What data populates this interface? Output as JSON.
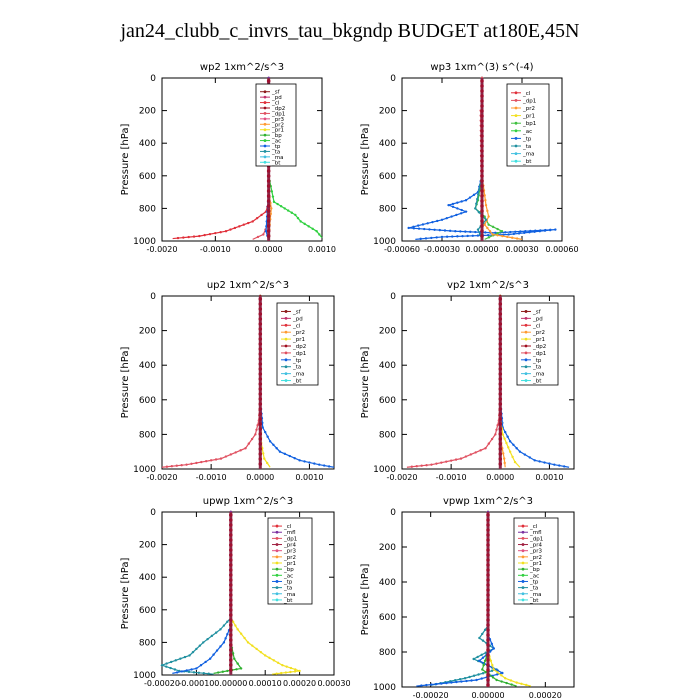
{
  "figure": {
    "title": "jan24_clubb_c_invrs_tau_bkgndp  BUDGET at180E,45N"
  },
  "colors": {
    "_sf": "#8b1a1a",
    "_pd": "#c0306a",
    "_cl": "#e0303a",
    "_dp2": "#a01020",
    "_dp1": "#e05060",
    "_pr2": "#ff9a30",
    "_pr1": "#f2e020",
    "_bp": "#30b030",
    "_ac": "#30d040",
    "_tp": "#1060e0",
    "_ta": "#2090a0",
    "_ma": "#40c0e0",
    "_bt": "#40e0e0",
    "_mfl": "#7b2fa0",
    "_pr4": "#a02040",
    "_pr3": "#e05080",
    "_bp1": "#40c040",
    "_dp": "#a01020"
  },
  "chart_data": [
    {
      "type": "line",
      "title": "wp2   1xm^2/s^3",
      "ylabel": "Pressure [hPa]",
      "xlim": [
        -0.002,
        0.001
      ],
      "ylim": [
        1000,
        0
      ],
      "xticks": [
        -0.002,
        -0.001,
        0.0,
        0.001
      ],
      "xtick_labels": [
        "-0.0020",
        "-0.0010",
        "0.0000",
        "0.0010"
      ],
      "yticks": [
        0,
        200,
        400,
        600,
        800,
        1000
      ],
      "legend": [
        "_sf",
        "_pd",
        "_cl",
        "_dp2",
        "_dp1",
        "_pr3",
        "_pr2",
        "_pr1",
        "_bp",
        "_ac",
        "_tp",
        "_ta",
        "_ma",
        "_bt"
      ],
      "series": [
        {
          "key": "_cl",
          "x": [
            0,
            0,
            0,
            0.0,
            -5e-05,
            -0.0003,
            -0.0008,
            -0.0013,
            -0.0018
          ],
          "y": [
            0,
            200,
            600,
            760,
            820,
            880,
            940,
            970,
            985
          ]
        },
        {
          "key": "_dp1",
          "x": [
            0,
            0,
            0,
            0,
            -2e-05,
            -0.0001,
            -0.0003
          ],
          "y": [
            0,
            200,
            700,
            800,
            900,
            960,
            990
          ]
        },
        {
          "key": "_ac",
          "x": [
            0,
            0,
            0,
            0.0001,
            0.0003,
            0.0005,
            0.0006,
            0.0009,
            0.0011
          ],
          "y": [
            0,
            200,
            600,
            760,
            800,
            840,
            880,
            940,
            980
          ]
        },
        {
          "key": "_pr2",
          "x": [
            0,
            0,
            0,
            5e-05,
            2e-05,
            0
          ],
          "y": [
            0,
            300,
            700,
            800,
            900,
            990
          ]
        },
        {
          "key": "_tp",
          "x": [
            0,
            0,
            0,
            -3e-05,
            -5e-05,
            0
          ],
          "y": [
            0,
            300,
            700,
            850,
            940,
            995
          ]
        },
        {
          "key": "_mfl",
          "x": [
            0,
            0,
            0,
            0,
            0,
            0
          ],
          "y": [
            0,
            200,
            400,
            600,
            800,
            1000
          ]
        }
      ]
    },
    {
      "type": "line",
      "title": "wp3   1xm^(3) s^(-4)",
      "ylabel": "Pressure [hPa]",
      "xlim": [
        -0.0006,
        0.0006
      ],
      "ylim": [
        1000,
        0
      ],
      "xticks": [
        -0.0006,
        -0.0003,
        0.0,
        0.0003,
        0.0006
      ],
      "xtick_labels": [
        "-0.00060",
        "-0.00030",
        "0.00000",
        "0.00030",
        "0.00060"
      ],
      "yticks": [
        0,
        200,
        400,
        600,
        800,
        1000
      ],
      "legend": [
        "_cl",
        "_dp1",
        "_pr2",
        "_pr1",
        "_bp1",
        "_ac",
        "_tp",
        "_ta",
        "_ma",
        "_bt"
      ],
      "series": [
        {
          "key": "_tp",
          "x": [
            0,
            0,
            0,
            -3e-05,
            -0.00012,
            -0.00025,
            -0.00012,
            -0.0003,
            -0.00055,
            -0.0002,
            0.0001,
            0.00055,
            0.0002,
            -0.0003,
            -0.0005
          ],
          "y": [
            0,
            200,
            600,
            700,
            750,
            780,
            820,
            870,
            920,
            940,
            950,
            930,
            960,
            975,
            990
          ]
        },
        {
          "key": "_bp1",
          "x": [
            0,
            0,
            0,
            -3e-05,
            -5e-05,
            2e-05,
            5e-05,
            0.00015,
            2e-05
          ],
          "y": [
            0,
            200,
            600,
            750,
            800,
            850,
            900,
            940,
            990
          ]
        },
        {
          "key": "_pr2",
          "x": [
            0,
            0,
            0,
            3e-05,
            5e-05,
            2e-05,
            8e-05,
            0.0003
          ],
          "y": [
            0,
            300,
            600,
            780,
            850,
            900,
            960,
            990
          ]
        },
        {
          "key": "_ta",
          "x": [
            0,
            0,
            0,
            -5e-05,
            3e-05,
            -3e-05,
            0
          ],
          "y": [
            0,
            300,
            600,
            800,
            870,
            930,
            990
          ]
        },
        {
          "key": "_cl",
          "x": [
            0,
            0,
            0,
            0,
            0,
            0,
            0
          ],
          "y": [
            0,
            200,
            400,
            600,
            800,
            900,
            1000
          ]
        },
        {
          "key": "_dp1",
          "x": [
            0,
            0,
            -1e-05,
            0
          ],
          "y": [
            0,
            190,
            200,
            1000
          ]
        }
      ]
    },
    {
      "type": "line",
      "title": "up2   1xm^2/s^3",
      "ylabel": "Pressure [hPa]",
      "xlim": [
        -0.002,
        0.0015
      ],
      "ylim": [
        1000,
        0
      ],
      "xticks": [
        -0.002,
        -0.001,
        0.0,
        0.001
      ],
      "xtick_labels": [
        "-0.0020",
        "-0.0010",
        "0.0000",
        "0.0010"
      ],
      "yticks": [
        0,
        200,
        400,
        600,
        800,
        1000
      ],
      "legend": [
        "_sf",
        "_pd",
        "_cl",
        "_pr2",
        "_pr1",
        "_dp2",
        "_dp1",
        "_tp",
        "_ta",
        "_ma",
        "_bt"
      ],
      "series": [
        {
          "key": "_dp1",
          "x": [
            0,
            0,
            0,
            -3e-05,
            -0.0001,
            -0.0003,
            -0.0008,
            -0.0015,
            -0.002
          ],
          "y": [
            0,
            200,
            600,
            720,
            800,
            880,
            940,
            975,
            990
          ]
        },
        {
          "key": "_tp",
          "x": [
            0,
            0,
            0,
            5e-05,
            0.0002,
            0.0004,
            0.0008,
            0.0012,
            0.0015
          ],
          "y": [
            0,
            200,
            600,
            760,
            840,
            900,
            950,
            975,
            990
          ]
        },
        {
          "key": "_pr1",
          "x": [
            0,
            0,
            0,
            2e-05,
            8e-05,
            0.0002
          ],
          "y": [
            0,
            300,
            700,
            850,
            940,
            990
          ]
        },
        {
          "key": "_sf",
          "x": [
            0,
            0,
            0,
            0,
            0,
            0
          ],
          "y": [
            0,
            200,
            400,
            600,
            800,
            1000
          ]
        }
      ]
    },
    {
      "type": "line",
      "title": "vp2   1xm^2/s^3",
      "ylabel": "Pressure [hPa]",
      "xlim": [
        -0.002,
        0.0015
      ],
      "ylim": [
        1000,
        0
      ],
      "xticks": [
        -0.002,
        -0.001,
        0.0,
        0.001
      ],
      "xtick_labels": [
        "-0.0020",
        "-0.0010",
        "0.0000",
        "0.0010"
      ],
      "yticks": [
        0,
        200,
        400,
        600,
        800,
        1000
      ],
      "legend": [
        "_sf",
        "_pd",
        "_cl",
        "_pr2",
        "_pr1",
        "_dp2",
        "_dp1",
        "_tp",
        "_ta",
        "_ma",
        "_bt"
      ],
      "series": [
        {
          "key": "_dp1",
          "x": [
            0,
            0,
            0,
            -3e-05,
            -0.0001,
            -0.0003,
            -0.0008,
            -0.0014,
            -0.0019
          ],
          "y": [
            0,
            200,
            600,
            720,
            800,
            880,
            940,
            975,
            990
          ]
        },
        {
          "key": "_tp",
          "x": [
            0,
            0,
            0,
            5e-05,
            0.0002,
            0.0004,
            0.0007,
            0.0011,
            0.0014
          ],
          "y": [
            0,
            200,
            600,
            760,
            840,
            900,
            950,
            975,
            990
          ]
        },
        {
          "key": "_pr1",
          "x": [
            0,
            0,
            0,
            5e-05,
            0.0002,
            0.0003,
            0.0004
          ],
          "y": [
            0,
            300,
            700,
            800,
            900,
            960,
            990
          ]
        },
        {
          "key": "_pr2",
          "x": [
            0,
            0,
            0,
            2e-05,
            8e-05,
            0.0001
          ],
          "y": [
            0,
            300,
            700,
            850,
            940,
            990
          ]
        },
        {
          "key": "_sf",
          "x": [
            0,
            0,
            0,
            0,
            0,
            0
          ],
          "y": [
            0,
            200,
            400,
            600,
            800,
            1000
          ]
        }
      ]
    },
    {
      "type": "line",
      "title": "upwp   1xm^2/s^3",
      "ylabel": "Pressure [hPa]",
      "xlim": [
        -0.0002,
        0.0003
      ],
      "ylim": [
        1000,
        0
      ],
      "xticks": [
        -0.0002,
        -0.0001,
        0.0,
        0.0001,
        0.0002,
        0.0003
      ],
      "xtick_labels": [
        "-0.00020",
        "-0.00010",
        "0.00000",
        "0.00010",
        "0.00020",
        "0.00030"
      ],
      "yticks": [
        0,
        200,
        400,
        600,
        800,
        1000
      ],
      "legend": [
        "_cl",
        "_mfl",
        "_dp1",
        "_pr4",
        "_pr3",
        "_pr2",
        "_pr1",
        "_bp",
        "_ac",
        "_tp",
        "_ta",
        "_ma",
        "_bt"
      ],
      "series": [
        {
          "key": "_pr1",
          "x": [
            0,
            0,
            0,
            2e-05,
            5e-05,
            0.0001,
            0.00015,
            0.0002,
            0.00012
          ],
          "y": [
            0,
            300,
            650,
            720,
            800,
            880,
            940,
            975,
            995
          ]
        },
        {
          "key": "_ta",
          "x": [
            0,
            0,
            0,
            -3e-05,
            -8e-05,
            -0.00012,
            -0.0002,
            -0.00015,
            -5e-05
          ],
          "y": [
            0,
            300,
            650,
            720,
            800,
            880,
            940,
            975,
            995
          ]
        },
        {
          "key": "_tp",
          "x": [
            0,
            0,
            0,
            -2e-05,
            -6e-05,
            -0.0001,
            -0.00017
          ],
          "y": [
            0,
            300,
            700,
            800,
            900,
            960,
            990
          ]
        },
        {
          "key": "_bp",
          "x": [
            0,
            0,
            0,
            1e-05,
            3e-05,
            -5e-05
          ],
          "y": [
            0,
            400,
            800,
            900,
            960,
            990
          ]
        },
        {
          "key": "_dp1",
          "x": [
            0,
            0,
            0,
            0,
            0,
            0
          ],
          "y": [
            0,
            200,
            400,
            600,
            800,
            1000
          ]
        },
        {
          "key": "_mfl",
          "x": [
            0,
            0,
            0,
            0,
            0,
            0
          ],
          "y": [
            0,
            200,
            400,
            600,
            800,
            1000
          ]
        }
      ]
    },
    {
      "type": "line",
      "title": "vpwp   1xm^2/s^3",
      "ylabel": "Pressure [hPa]",
      "xlim": [
        -0.0003,
        0.0003
      ],
      "ylim": [
        1000,
        0
      ],
      "xticks": [
        -0.0002,
        0.0,
        0.0002
      ],
      "xtick_labels": [
        "-0.00020",
        "0.00000",
        "0.00020"
      ],
      "yticks": [
        0,
        200,
        400,
        600,
        800,
        1000
      ],
      "legend": [
        "_cl",
        "_mfl",
        "_dp1",
        "_pr4",
        "_pr3",
        "_pr2",
        "_pr1",
        "_bp",
        "_ac",
        "_tp",
        "_ta",
        "_ma",
        "_bt"
      ],
      "series": [
        {
          "key": "_ta",
          "x": [
            0,
            0,
            0,
            -3e-05,
            2e-05,
            -5e-05,
            3e-05,
            -8e-05,
            -0.0002
          ],
          "y": [
            0,
            300,
            650,
            720,
            780,
            840,
            900,
            950,
            990
          ]
        },
        {
          "key": "_tp",
          "x": [
            0,
            0,
            0,
            2e-05,
            -3e-05,
            5e-05,
            -4e-05,
            -0.00025
          ],
          "y": [
            0,
            300,
            700,
            780,
            850,
            920,
            960,
            995
          ]
        },
        {
          "key": "_pr1",
          "x": [
            0,
            0,
            0,
            2e-05,
            6e-05,
            0.0001,
            0.00015
          ],
          "y": [
            0,
            400,
            800,
            900,
            950,
            975,
            995
          ]
        },
        {
          "key": "_bp",
          "x": [
            0,
            0,
            0,
            -2e-05,
            3e-05,
            0.0001
          ],
          "y": [
            0,
            400,
            800,
            900,
            960,
            995
          ]
        },
        {
          "key": "_mfl",
          "x": [
            0,
            0,
            0,
            0,
            0,
            0
          ],
          "y": [
            0,
            200,
            400,
            600,
            800,
            1000
          ]
        }
      ]
    }
  ]
}
